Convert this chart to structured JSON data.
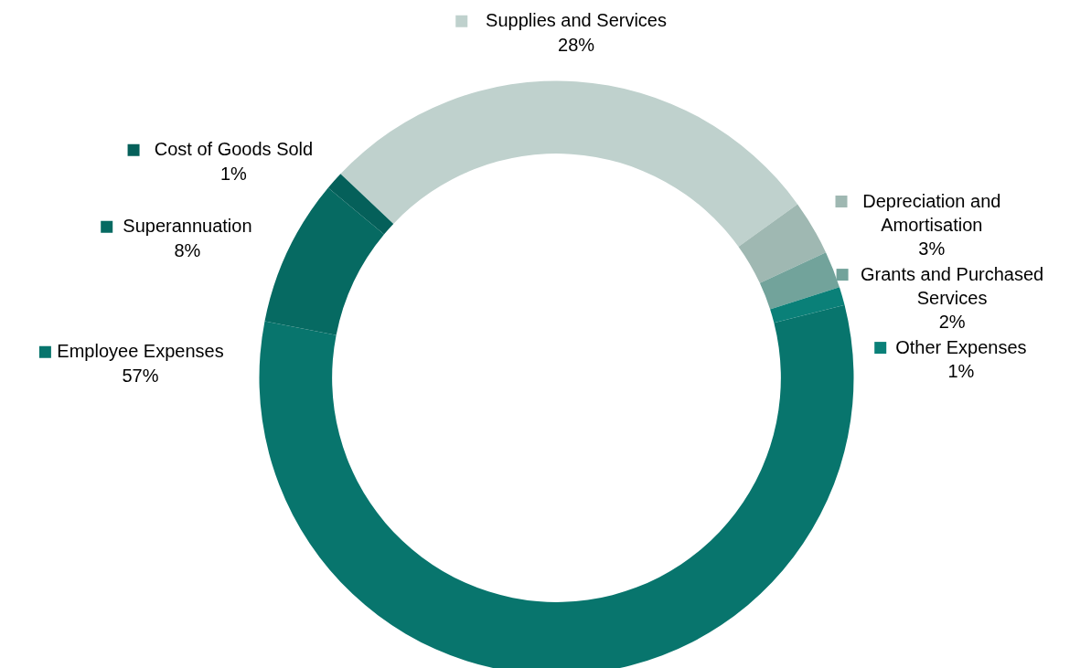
{
  "chart_data": {
    "type": "donut",
    "categories": [
      "Supplies and Services",
      "Depreciation and Amortisation",
      "Grants and Purchased Services",
      "Other Expenses",
      "Employee Expenses",
      "Superannuation",
      "Cost of Goods Sold"
    ],
    "values": [
      28,
      3,
      2,
      1,
      57,
      8,
      1
    ],
    "value_labels": [
      "28%",
      "3%",
      "2%",
      "1%",
      "57%",
      "8%",
      "1%"
    ],
    "colors": [
      "#bfd1cd",
      "#9fb8b2",
      "#72a39b",
      "#0a8078",
      "#08756d",
      "#066a62",
      "#05605a"
    ],
    "legend": "top"
  }
}
